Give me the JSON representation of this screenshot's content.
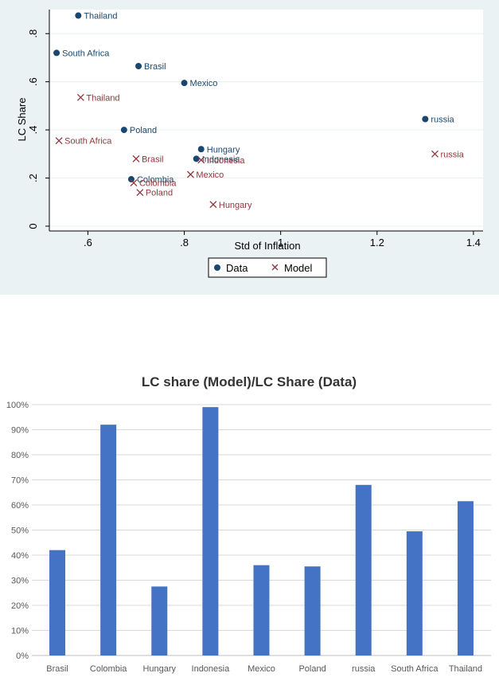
{
  "chart_data": [
    {
      "type": "scatter",
      "xlabel": "Std of Inflation",
      "ylabel": "LC Share",
      "xlim": [
        0.52,
        1.42
      ],
      "ylim": [
        -0.02,
        0.9
      ],
      "x_ticks": [
        0.6,
        0.8,
        1,
        1.2,
        1.4
      ],
      "x_tick_labels": [
        ".6",
        ".8",
        "1",
        "1.2",
        "1.4"
      ],
      "y_ticks": [
        0,
        0.2,
        0.4,
        0.6,
        0.8
      ],
      "y_tick_labels": [
        "0",
        ".2",
        ".4",
        ".6",
        ".8"
      ],
      "grid": true,
      "legend_position": "bottom",
      "series": [
        {
          "name": "Data",
          "marker": "dot",
          "color": "#1a476f",
          "points": [
            {
              "label": "Thailand",
              "x": 0.58,
              "y": 0.875
            },
            {
              "label": "South Africa",
              "x": 0.535,
              "y": 0.72
            },
            {
              "label": "Brasil",
              "x": 0.705,
              "y": 0.665
            },
            {
              "label": "Mexico",
              "x": 0.8,
              "y": 0.595
            },
            {
              "label": "Poland",
              "x": 0.675,
              "y": 0.4
            },
            {
              "label": "Colombia",
              "x": 0.69,
              "y": 0.195
            },
            {
              "label": "Hungary",
              "x": 0.835,
              "y": 0.32
            },
            {
              "label": "Indonesia",
              "x": 0.825,
              "y": 0.28
            },
            {
              "label": "russia",
              "x": 1.3,
              "y": 0.445
            }
          ]
        },
        {
          "name": "Model",
          "marker": "x",
          "color": "#90353b",
          "points": [
            {
              "label": "Thailand",
              "x": 0.585,
              "y": 0.535
            },
            {
              "label": "South Africa",
              "x": 0.54,
              "y": 0.355
            },
            {
              "label": "Brasil",
              "x": 0.7,
              "y": 0.28
            },
            {
              "label": "Indonesia",
              "x": 0.835,
              "y": 0.275
            },
            {
              "label": "Mexico",
              "x": 0.813,
              "y": 0.215
            },
            {
              "label": "Colombia",
              "x": 0.695,
              "y": 0.18
            },
            {
              "label": "Poland",
              "x": 0.708,
              "y": 0.14
            },
            {
              "label": "Hungary",
              "x": 0.86,
              "y": 0.09
            },
            {
              "label": "russia",
              "x": 1.32,
              "y": 0.3
            }
          ]
        }
      ]
    },
    {
      "type": "bar",
      "title": "LC share (Model)/LC Share (Data)",
      "categories": [
        "Brasil",
        "Colombia",
        "Hungary",
        "Indonesia",
        "Mexico",
        "Poland",
        "russia",
        "South Africa",
        "Thailand"
      ],
      "values": [
        42,
        92,
        27.5,
        99,
        36,
        35.5,
        68,
        49.5,
        61.5
      ],
      "ylim": [
        0,
        100
      ],
      "y_ticks": [
        0,
        10,
        20,
        30,
        40,
        50,
        60,
        70,
        80,
        90,
        100
      ],
      "y_tick_labels": [
        "0%",
        "10%",
        "20%",
        "30%",
        "40%",
        "50%",
        "60%",
        "70%",
        "80%",
        "90%",
        "100%"
      ],
      "bar_color": "#4472c4",
      "grid": true
    }
  ]
}
